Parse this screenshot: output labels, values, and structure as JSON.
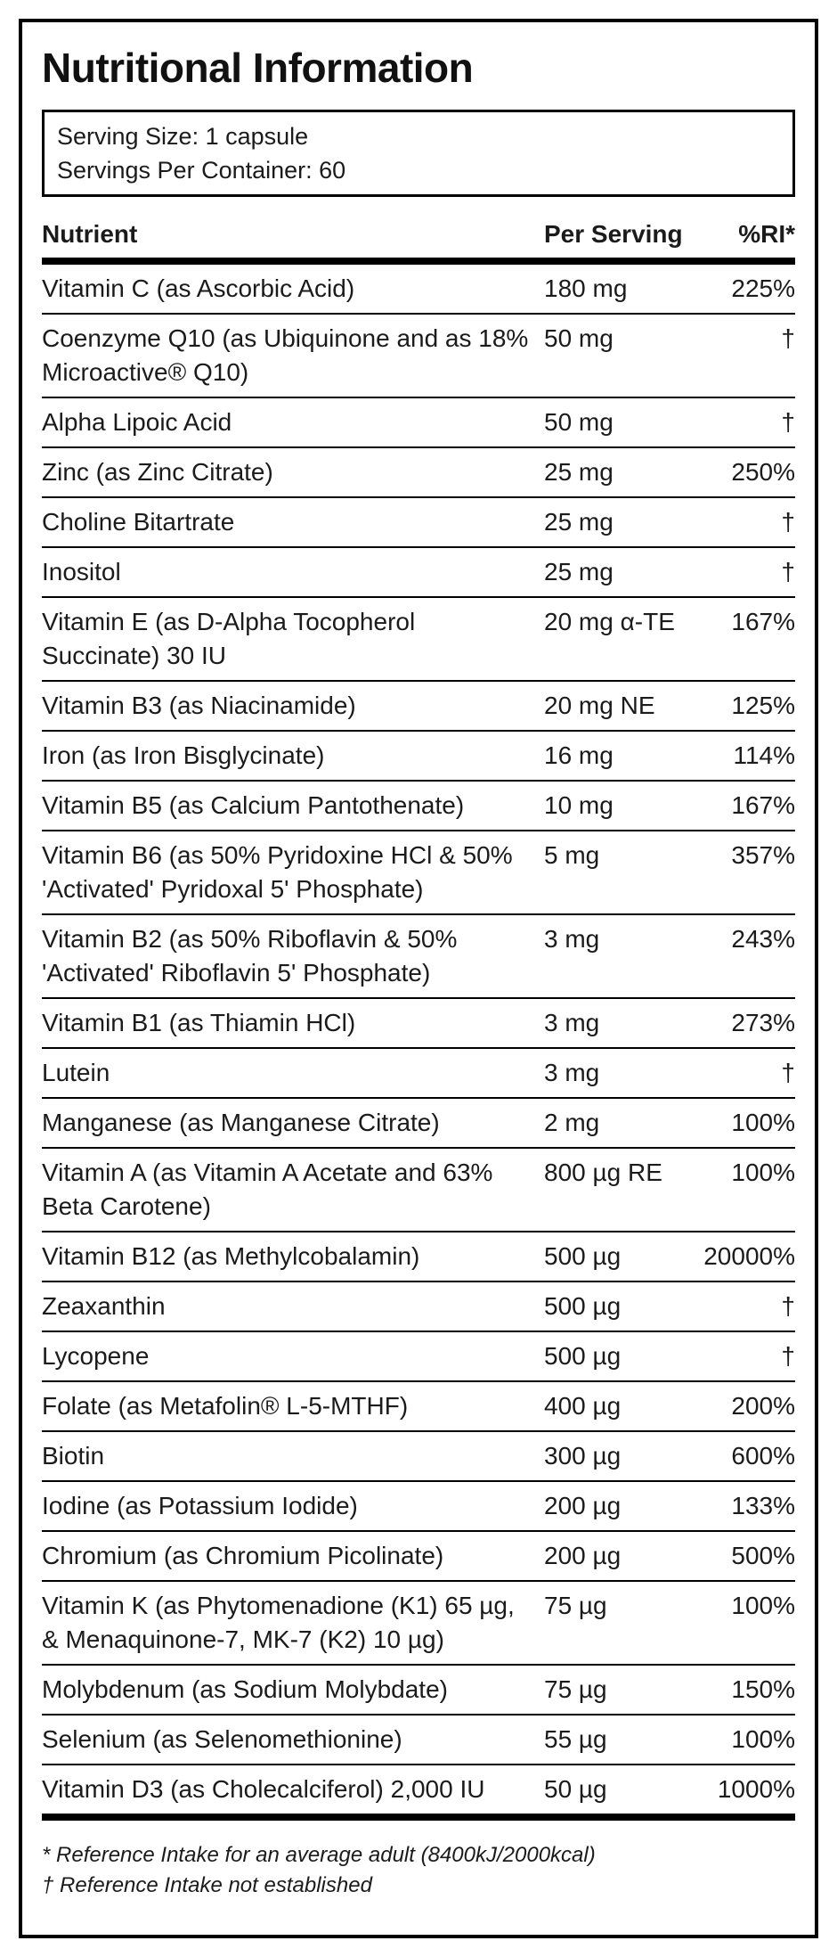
{
  "title": "Nutritional Information",
  "serving_info": {
    "serving_size": "Serving Size: 1 capsule",
    "servings_per_container": "Servings Per Container: 60"
  },
  "table": {
    "columns": [
      "Nutrient",
      "Per Serving",
      "%RI*"
    ],
    "rows": [
      {
        "nutrient": "Vitamin C (as Ascorbic Acid)",
        "per_serving": "180 mg",
        "ri": "225%"
      },
      {
        "nutrient": "Coenzyme Q10 (as Ubiquinone and as 18% Microactive® Q10)",
        "per_serving": "50 mg",
        "ri": "†"
      },
      {
        "nutrient": "Alpha Lipoic Acid",
        "per_serving": "50 mg",
        "ri": "†"
      },
      {
        "nutrient": "Zinc (as Zinc Citrate)",
        "per_serving": "25 mg",
        "ri": "250%"
      },
      {
        "nutrient": "Choline Bitartrate",
        "per_serving": "25 mg",
        "ri": "†"
      },
      {
        "nutrient": "Inositol",
        "per_serving": "25 mg",
        "ri": "†"
      },
      {
        "nutrient": "Vitamin E (as D-Alpha Tocopherol Succinate) 30 IU",
        "per_serving": "20 mg α-TE",
        "ri": "167%"
      },
      {
        "nutrient": "Vitamin B3 (as Niacinamide)",
        "per_serving": "20 mg NE",
        "ri": "125%"
      },
      {
        "nutrient": "Iron (as Iron Bisglycinate)",
        "per_serving": "16 mg",
        "ri": "114%"
      },
      {
        "nutrient": "Vitamin B5 (as Calcium Pantothenate)",
        "per_serving": "10 mg",
        "ri": "167%"
      },
      {
        "nutrient": "Vitamin B6 (as 50% Pyridoxine HCl & 50% 'Activated' Pyridoxal 5' Phosphate)",
        "per_serving": "5 mg",
        "ri": "357%"
      },
      {
        "nutrient": "Vitamin B2 (as 50% Riboflavin & 50% 'Activated' Riboflavin 5' Phosphate)",
        "per_serving": "3 mg",
        "ri": "243%"
      },
      {
        "nutrient": "Vitamin B1 (as Thiamin HCl)",
        "per_serving": "3 mg",
        "ri": "273%"
      },
      {
        "nutrient": "Lutein",
        "per_serving": "3 mg",
        "ri": "†"
      },
      {
        "nutrient": "Manganese (as Manganese Citrate)",
        "per_serving": "2 mg",
        "ri": "100%"
      },
      {
        "nutrient": "Vitamin A (as Vitamin A Acetate and 63% Beta Carotene)",
        "per_serving": "800 µg RE",
        "ri": "100%"
      },
      {
        "nutrient": "Vitamin B12 (as Methylcobalamin)",
        "per_serving": "500 µg",
        "ri": "20000%"
      },
      {
        "nutrient": "Zeaxanthin",
        "per_serving": "500 µg",
        "ri": "†"
      },
      {
        "nutrient": "Lycopene",
        "per_serving": "500 µg",
        "ri": "†"
      },
      {
        "nutrient": "Folate (as Metafolin® L-5-MTHF)",
        "per_serving": "400 µg",
        "ri": "200%"
      },
      {
        "nutrient": "Biotin",
        "per_serving": "300 µg",
        "ri": "600%"
      },
      {
        "nutrient": "Iodine (as Potassium Iodide)",
        "per_serving": "200 µg",
        "ri": "133%"
      },
      {
        "nutrient": "Chromium (as Chromium Picolinate)",
        "per_serving": "200 µg",
        "ri": "500%"
      },
      {
        "nutrient": "Vitamin K (as Phytomenadione (K1) 65 µg, & Menaquinone-7, MK-7 (K2) 10 µg)",
        "per_serving": "75 µg",
        "ri": "100%"
      },
      {
        "nutrient": "Molybdenum (as Sodium Molybdate)",
        "per_serving": "75 µg",
        "ri": "150%"
      },
      {
        "nutrient": "Selenium (as Selenomethionine)",
        "per_serving": "55 µg",
        "ri": "100%"
      },
      {
        "nutrient": "Vitamin D3 (as Cholecalciferol) 2,000 IU",
        "per_serving": "50 µg",
        "ri": "1000%"
      }
    ]
  },
  "footnotes": [
    "* Reference Intake for an average adult (8400kJ/2000kcal)",
    "† Reference Intake not established"
  ],
  "colors": {
    "text": "#1b1b1b",
    "border": "#000000",
    "background": "#ffffff"
  }
}
